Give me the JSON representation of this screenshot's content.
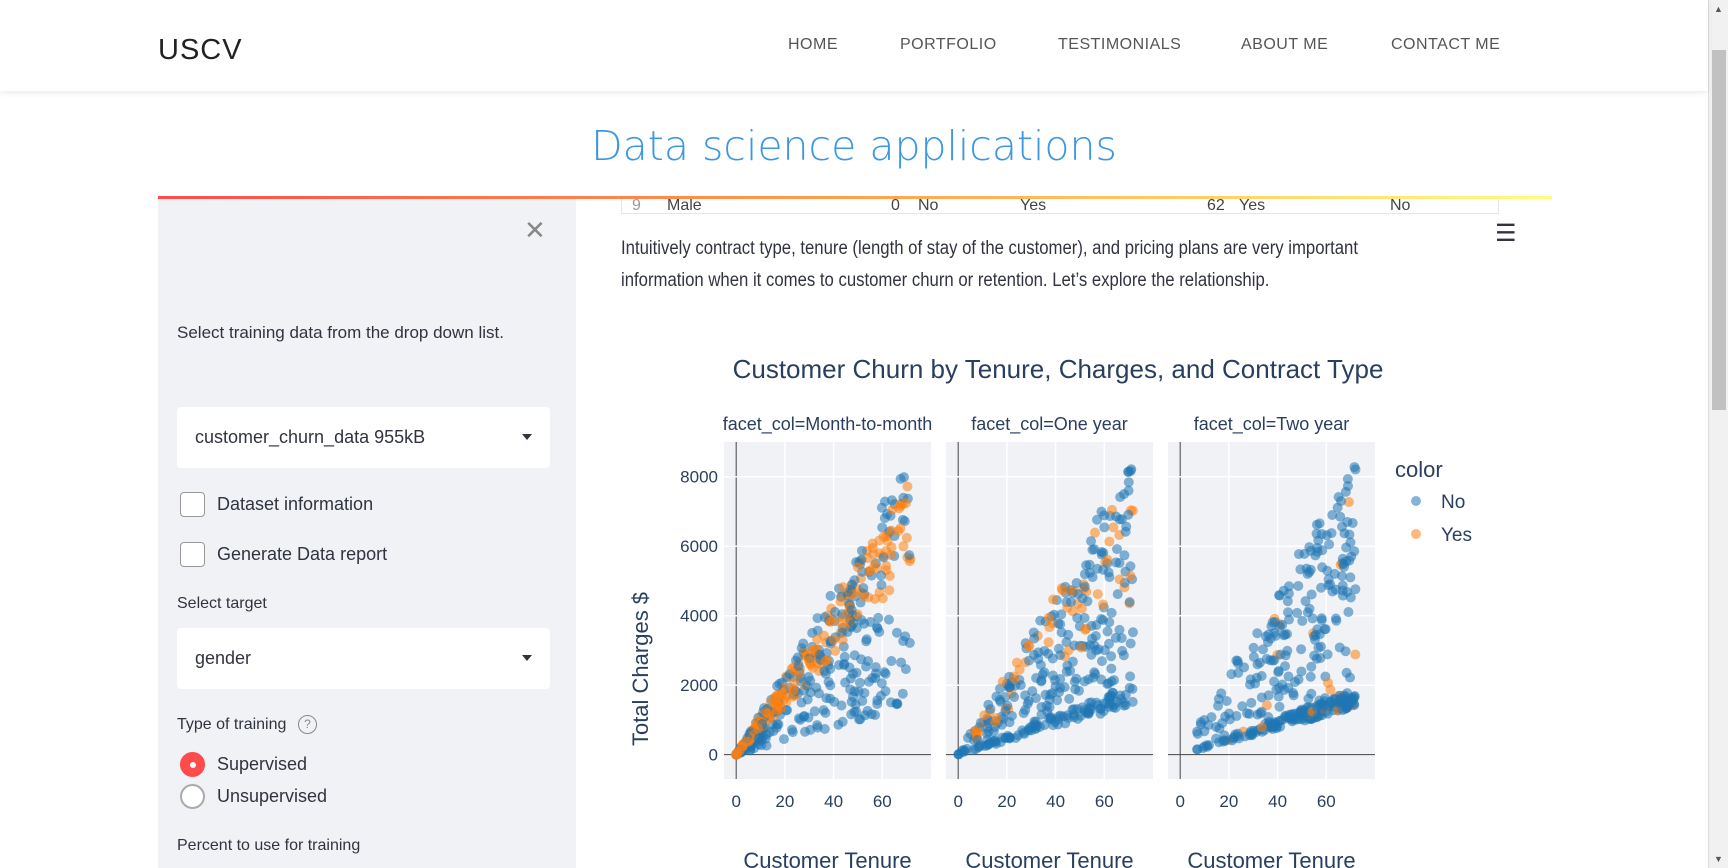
{
  "nav": {
    "brand": "USCV",
    "items": [
      "HOME",
      "PORTFOLIO",
      "TESTIMONIALS",
      "ABOUT ME",
      "CONTACT ME"
    ]
  },
  "page_title": "Data science applications",
  "sidebar": {
    "close_icon": "close-icon",
    "intro": "Select training data from the drop down list.",
    "dataset_select": "customer_churn_data 955kB",
    "checkboxes": [
      {
        "label": "Dataset information",
        "checked": false
      },
      {
        "label": "Generate Data report",
        "checked": false
      }
    ],
    "target_label": "Select target",
    "target_select": "gender",
    "training_type_label": "Type of training",
    "training_options": [
      {
        "label": "Supervised",
        "selected": true
      },
      {
        "label": "Unsupervised",
        "selected": false
      }
    ],
    "percent_label": "Percent to use for training"
  },
  "table_row": [
    "9",
    "Male",
    "0",
    "No",
    "Yes",
    "62",
    "Yes",
    "No"
  ],
  "paragraph": [
    "Intuitively contract type, tenure (length of stay of the customer), and pricing plans are very important",
    "information when it comes to customer churn or retention. Let’s explore the relationship."
  ],
  "chart_data": {
    "type": "scatter",
    "title": "Customer Churn by Tenure, Charges, and Contract Type",
    "facets": [
      "facet_col=Month-to-month",
      "facet_col=One year",
      "facet_col=Two year"
    ],
    "xlabel": "Customer Tenure",
    "ylabel": "Total Charges $",
    "xticks": [
      0,
      20,
      40,
      60
    ],
    "yticks": [
      0,
      2000,
      4000,
      6000,
      8000
    ],
    "xlim": [
      -5,
      80
    ],
    "ylim": [
      -700,
      9000
    ],
    "legend": {
      "title": "color",
      "placement": "right",
      "entries": [
        {
          "name": "No",
          "color": "#1f77b4"
        },
        {
          "name": "Yes",
          "color": "#ff7f0e"
        }
      ]
    },
    "grid": true
  },
  "colors": {
    "accent": "#ff4b4b",
    "title": "#3d97e0",
    "sidebar": "#f0f2f6",
    "plot_bg": "#f0f2f6"
  }
}
